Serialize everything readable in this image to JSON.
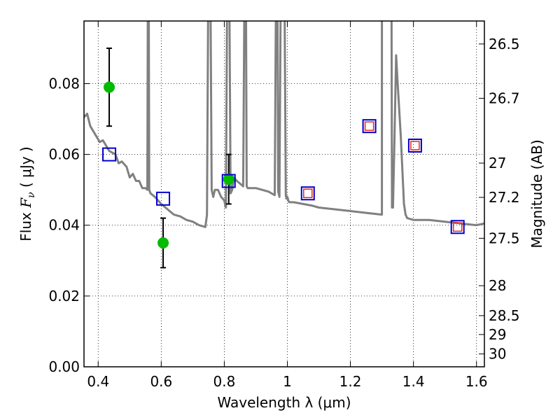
{
  "chart_data": {
    "type": "scatter",
    "xlabel": "Wavelength  λ (μm)",
    "ylabel_parts": [
      "Flux ",
      "F",
      "ν",
      " ( μJy )"
    ],
    "y2label": "Magnitude (AB)",
    "xlim": [
      0.355,
      1.625
    ],
    "ylim": [
      0.0,
      0.0977
    ],
    "xticks": [
      0.4,
      0.6,
      0.8,
      1.0,
      1.2,
      1.4,
      1.6
    ],
    "xtick_labels": [
      "0.4",
      "0.6",
      "0.8",
      "1",
      "1.2",
      "1.4",
      "1.6"
    ],
    "yticks": [
      0.0,
      0.02,
      0.04,
      0.06,
      0.08
    ],
    "ytick_labels": [
      "0.00",
      "0.02",
      "0.04",
      "0.06",
      "0.08"
    ],
    "y2ticks": [
      26.5,
      26.7,
      27.0,
      27.2,
      27.5,
      28.0,
      28.5,
      29.0,
      30.0
    ],
    "y2tick_labels": [
      "26.5",
      "26.7",
      "27",
      "27.2",
      "27.5",
      "28",
      "28.5",
      "29",
      "30"
    ],
    "grid": true,
    "colors": {
      "model": "#808080",
      "observed": "#00bb00",
      "errorbar": "#000000",
      "model_band": "#0000cc",
      "observed_band_inner": "#ee2222"
    },
    "series": [
      {
        "kind": "model_sed",
        "x": [
          0.355,
          0.365,
          0.375,
          0.385,
          0.395,
          0.405,
          0.415,
          0.425,
          0.435,
          0.445,
          0.455,
          0.465,
          0.475,
          0.49,
          0.5,
          0.51,
          0.52,
          0.53,
          0.54,
          0.55,
          0.556,
          0.558,
          0.56,
          0.562,
          0.566,
          0.58,
          0.6,
          0.62,
          0.64,
          0.66,
          0.68,
          0.7,
          0.72,
          0.74,
          0.745,
          0.75,
          0.755,
          0.76,
          0.765,
          0.77,
          0.78,
          0.79,
          0.8,
          0.805,
          0.81,
          0.815,
          0.82,
          0.825,
          0.83,
          0.84,
          0.86,
          0.865,
          0.868,
          0.871,
          0.874,
          0.88,
          0.9,
          0.92,
          0.94,
          0.96,
          0.965,
          0.968,
          0.971,
          0.975,
          0.98,
          0.99,
          0.995,
          0.997,
          1.0,
          1.003,
          1.006,
          1.02,
          1.05,
          1.08,
          1.1,
          1.15,
          1.2,
          1.25,
          1.3,
          1.3,
          1.305,
          1.31,
          1.32,
          1.33,
          1.332,
          1.335,
          1.34,
          1.345,
          1.35,
          1.36,
          1.37,
          1.375,
          1.38,
          1.4,
          1.45,
          1.5,
          1.55,
          1.6,
          1.625
        ],
        "y": [
          0.0705,
          0.0715,
          0.068,
          0.0665,
          0.065,
          0.0635,
          0.064,
          0.0625,
          0.061,
          0.0605,
          0.06,
          0.0575,
          0.058,
          0.0565,
          0.0535,
          0.0545,
          0.0525,
          0.0525,
          0.0505,
          0.0505,
          0.05,
          0.12,
          0.12,
          0.05,
          0.049,
          0.048,
          0.046,
          0.0445,
          0.043,
          0.0425,
          0.0415,
          0.041,
          0.04,
          0.0395,
          0.043,
          0.12,
          0.12,
          0.05,
          0.048,
          0.05,
          0.05,
          0.048,
          0.047,
          0.045,
          0.12,
          0.12,
          0.049,
          0.05,
          0.0535,
          0.0525,
          0.051,
          0.12,
          0.12,
          0.051,
          0.0505,
          0.0505,
          0.0505,
          0.05,
          0.0495,
          0.0485,
          0.12,
          0.12,
          0.0495,
          0.048,
          0.12,
          0.12,
          0.0485,
          0.0475,
          0.048,
          0.047,
          0.0465,
          0.0465,
          0.046,
          0.0455,
          0.045,
          0.0445,
          0.044,
          0.0435,
          0.043,
          0.12,
          0.12,
          0.12,
          0.12,
          0.12,
          0.045,
          0.045,
          0.065,
          0.088,
          0.08,
          0.065,
          0.046,
          0.043,
          0.042,
          0.0415,
          0.0415,
          0.041,
          0.0405,
          0.04,
          0.0405
        ]
      },
      {
        "kind": "observed_points",
        "x": [
          0.435,
          0.606,
          0.814
        ],
        "y": [
          0.079,
          0.035,
          0.053
        ],
        "yerr_low": [
          0.068,
          0.028,
          0.046
        ],
        "yerr_high": [
          0.09,
          0.042,
          0.06
        ]
      },
      {
        "kind": "model_band_fluxes",
        "x": [
          0.435,
          0.606,
          0.814,
          1.065,
          1.26,
          1.405,
          1.54
        ],
        "y": [
          0.06,
          0.0475,
          0.0525,
          0.049,
          0.068,
          0.0625,
          0.0395
        ]
      },
      {
        "kind": "observed_band_inner",
        "x": [
          1.065,
          1.26,
          1.405,
          1.54
        ],
        "y": [
          0.049,
          0.068,
          0.0625,
          0.0395
        ]
      }
    ]
  }
}
